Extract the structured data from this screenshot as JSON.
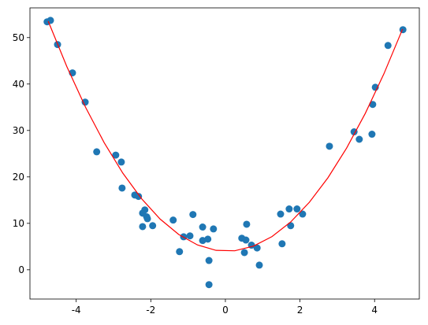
{
  "chart_data": {
    "type": "scatter",
    "xlim": [
      -5.24,
      5.2
    ],
    "ylim": [
      -6.3,
      56.4
    ],
    "xticks": [
      -4,
      -2,
      0,
      2,
      4
    ],
    "yticks": [
      0,
      10,
      20,
      30,
      40,
      50
    ],
    "series": [
      {
        "type": "scatter",
        "color": "#1f77b4",
        "x": [
          -4.78,
          -4.69,
          -4.5,
          -4.1,
          -3.76,
          -3.45,
          -2.94,
          -2.79,
          -2.77,
          -2.43,
          -2.33,
          -2.22,
          -2.16,
          -2.11,
          -2.09,
          -2.22,
          -1.95,
          -1.4,
          -1.12,
          -1.23,
          -0.95,
          -0.87,
          -0.61,
          -0.61,
          -0.47,
          -0.44,
          -0.32,
          -0.44,
          0.7,
          0.44,
          0.55,
          0.51,
          0.57,
          0.85,
          0.91,
          1.48,
          1.52,
          1.71,
          1.75,
          1.92,
          2.07,
          2.79,
          3.45,
          3.59,
          3.93,
          3.95,
          4.02,
          4.36,
          4.76
        ],
        "values": [
          53.4,
          53.7,
          48.5,
          42.4,
          36.1,
          25.4,
          24.7,
          23.2,
          17.6,
          16.1,
          15.8,
          12.2,
          12.9,
          11.4,
          11.0,
          9.3,
          9.5,
          10.7,
          7.1,
          3.9,
          7.3,
          11.9,
          9.2,
          6.3,
          6.6,
          2.0,
          8.8,
          -3.2,
          5.3,
          6.8,
          6.4,
          3.7,
          9.8,
          4.7,
          1.0,
          12.0,
          5.6,
          13.1,
          9.5,
          13.1,
          12.0,
          26.6,
          29.7,
          28.1,
          29.2,
          35.6,
          39.3,
          48.3,
          51.7
        ]
      },
      {
        "type": "line",
        "color": "#ff0000",
        "x": [
          -4.75,
          -4.25,
          -3.75,
          -3.25,
          -2.75,
          -2.25,
          -1.75,
          -1.25,
          -0.75,
          -0.25,
          0.25,
          0.75,
          1.25,
          1.75,
          2.25,
          2.75,
          3.25,
          3.75,
          4.25,
          4.75
        ],
        "values": [
          53.52,
          43.73,
          35.01,
          27.37,
          20.81,
          15.33,
          10.92,
          7.6,
          5.35,
          4.18,
          4.09,
          5.08,
          7.15,
          10.29,
          14.52,
          19.82,
          26.2,
          33.66,
          42.2,
          51.82
        ]
      }
    ]
  }
}
